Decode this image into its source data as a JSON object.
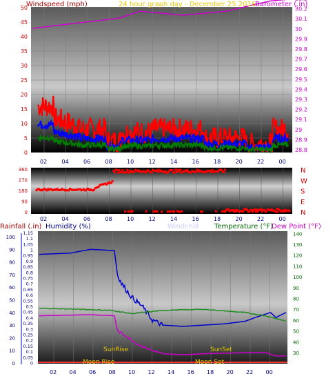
{
  "top": {
    "left_title": "Windspeed (mph)",
    "center_title": "24 hour graph day - December 25 2016",
    "right_title": "Barometer (.in)",
    "left_ticks": [
      "0",
      "5",
      "10",
      "15",
      "20",
      "25",
      "30",
      "35",
      "40",
      "45",
      "50"
    ],
    "right_ticks": [
      "28.8",
      "28.9",
      "29",
      "29.1",
      "29.2",
      "29.3",
      "29.4",
      "29.5",
      "29.6",
      "29.7",
      "29.8",
      "29.9",
      "30",
      "30.1",
      "30.2",
      "30.3"
    ],
    "x_ticks": [
      "02",
      "04",
      "06",
      "08",
      "10",
      "12",
      "14",
      "16",
      "18",
      "20",
      "22",
      "00"
    ]
  },
  "direction": {
    "left_ticks": [
      "0",
      "90",
      "180",
      "270",
      "360"
    ],
    "right_labels": [
      "N",
      "W",
      "S",
      "E",
      "N"
    ],
    "x_ticks": [
      "02",
      "04",
      "06",
      "08",
      "10",
      "12",
      "14",
      "16",
      "18",
      "20",
      "22",
      "00"
    ]
  },
  "bottom": {
    "rain_title": "Rainfall (.in)",
    "humidity_title": "Humidity (%)",
    "windchill_title": "Windchill",
    "temperature_title": "Temperature (°F)",
    "dewpoint_title": "Dew Point (°F)",
    "humidity_ticks": [
      "0",
      "10",
      "20",
      "30",
      "40",
      "50",
      "60",
      "70",
      "80",
      "90",
      "100"
    ],
    "rain_ticks": [
      "0",
      "0.05",
      "0.1",
      "0.15",
      "0.2",
      "0.25",
      "0.3",
      "0.35",
      "0.4",
      "0.45",
      "0.5",
      "0.55",
      "0.6",
      "0.65",
      "0.7",
      "0.75",
      "0.8",
      "0.85",
      "0.9",
      "0.95",
      "1",
      "1.05",
      "1.1",
      "1.15"
    ],
    "temp_ticks": [
      "30",
      "40",
      "50",
      "60",
      "70",
      "80",
      "90",
      "100",
      "110",
      "120",
      "130",
      "140"
    ],
    "x_ticks": [
      "02",
      "04",
      "06",
      "08",
      "10",
      "12",
      "14",
      "16",
      "18",
      "20",
      "22",
      "00"
    ],
    "sunrise": "SunRise",
    "sunset": "SunSet",
    "moonrise": "Moon Rise",
    "moonset": "Moon Set"
  },
  "colors": {
    "windspeed": "#ff0000",
    "gust_mid": "#0000ff",
    "wind_low": "#008000",
    "barometer": "#cc00cc",
    "direction": "#ff0000",
    "humidity": "#0000cc",
    "temperature": "#228b22",
    "dewpoint": "#cc00cc",
    "windchill": "#ccccff",
    "rain": "#ff3333",
    "title_red": "#aa0000",
    "title_gold": "#e6c800",
    "axis_purple": "#cc00cc",
    "axis_green": "#006600",
    "axis_blue": "#000080",
    "sun_moon": "#e6c800"
  }
}
